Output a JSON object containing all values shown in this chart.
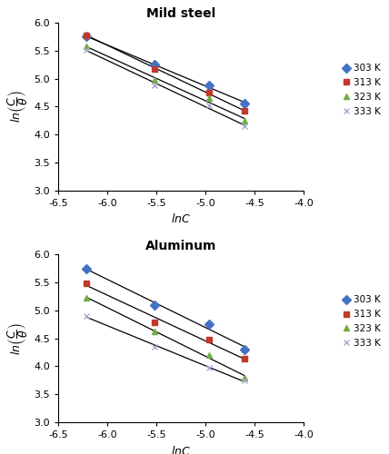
{
  "mild_steel": {
    "title": "Mild steel",
    "series": {
      "303 K": {
        "x": [
          -6.215,
          -5.521,
          -4.961,
          -4.605
        ],
        "y": [
          5.75,
          5.25,
          4.88,
          4.55
        ],
        "color": "#4472C4",
        "marker": "D",
        "markersize": 5
      },
      "313 K": {
        "x": [
          -6.215,
          -5.521,
          -4.961,
          -4.605
        ],
        "y": [
          5.78,
          5.18,
          4.75,
          4.42
        ],
        "color": "#C0392B",
        "marker": "s",
        "markersize": 5
      },
      "323 K": {
        "x": [
          -6.215,
          -5.521,
          -4.961,
          -4.605
        ],
        "y": [
          5.58,
          4.98,
          4.65,
          4.25
        ],
        "color": "#70AD47",
        "marker": "^",
        "markersize": 5
      },
      "333 K": {
        "x": [
          -6.215,
          -5.521,
          -4.961,
          -4.605
        ],
        "y": [
          5.52,
          4.88,
          4.52,
          4.15
        ],
        "color": "#A9A9D3",
        "marker": "x",
        "markersize": 5
      }
    }
  },
  "aluminum": {
    "title": "Aluminum",
    "series": {
      "303 K": {
        "x": [
          -6.215,
          -5.521,
          -4.961,
          -4.605
        ],
        "y": [
          5.74,
          5.1,
          4.75,
          4.3
        ],
        "color": "#4472C4",
        "marker": "D",
        "markersize": 5
      },
      "313 K": {
        "x": [
          -6.215,
          -5.521,
          -4.961,
          -4.605
        ],
        "y": [
          5.49,
          4.78,
          4.48,
          4.13
        ],
        "color": "#C0392B",
        "marker": "s",
        "markersize": 5
      },
      "323 K": {
        "x": [
          -6.215,
          -5.521,
          -4.961,
          -4.605
        ],
        "y": [
          5.23,
          4.62,
          4.2,
          3.8
        ],
        "color": "#70AD47",
        "marker": "^",
        "markersize": 5
      },
      "333 K": {
        "x": [
          -6.215,
          -5.521,
          -4.961,
          -4.605
        ],
        "y": [
          4.9,
          4.35,
          3.97,
          3.75
        ],
        "color": "#A9A9D3",
        "marker": "x",
        "markersize": 5
      }
    }
  },
  "xlim": [
    -6.5,
    -4.0
  ],
  "ylim": [
    3.0,
    6.0
  ],
  "xticks": [
    -6.5,
    -6.0,
    -5.5,
    -5.0,
    -4.5,
    -4.0
  ],
  "yticks": [
    3.0,
    3.5,
    4.0,
    4.5,
    5.0,
    5.5,
    6.0
  ],
  "legend_order": [
    "303 K",
    "313 K",
    "323 K",
    "333 K"
  ],
  "bg_color": "#FFFFFF",
  "line_color": "#000000"
}
